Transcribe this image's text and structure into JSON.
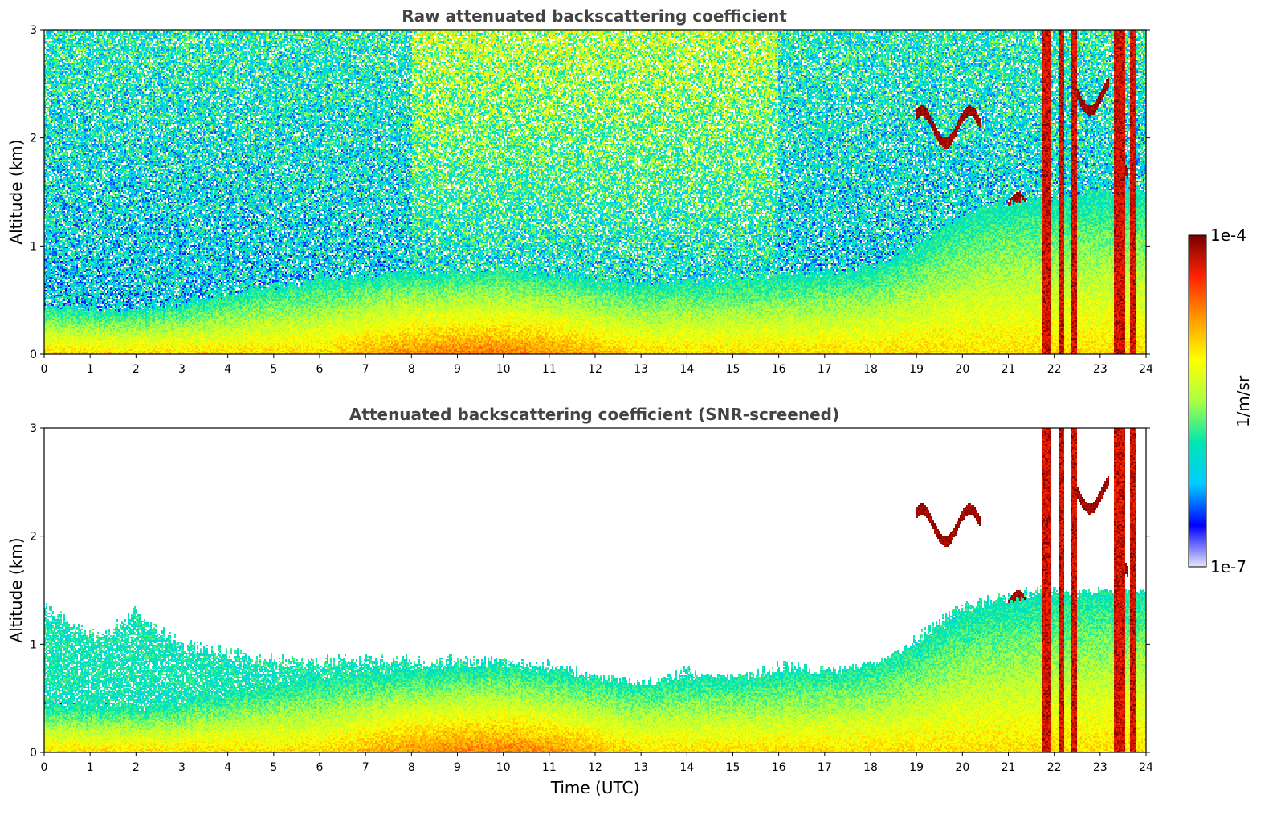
{
  "colors": {
    "jet_stops": [
      "#e6e6fa",
      "#0000ff",
      "#00ccff",
      "#00e6b0",
      "#aaff44",
      "#ffff00",
      "#ff9900",
      "#ff2200",
      "#7a0000"
    ],
    "axis": "#000000",
    "title": "#444444"
  },
  "chart_data": [
    {
      "type": "heatmap",
      "title": "Raw attenuated backscattering coefficient",
      "xlabel": "",
      "ylabel": "Altitude (km)",
      "xlim": [
        0,
        24
      ],
      "ylim": [
        0,
        3
      ],
      "x_ticks": [
        "0",
        "1",
        "2",
        "3",
        "4",
        "5",
        "6",
        "7",
        "8",
        "9",
        "10",
        "11",
        "12",
        "13",
        "14",
        "15",
        "16",
        "17",
        "18",
        "19",
        "20",
        "21",
        "22",
        "23",
        "24"
      ],
      "y_ticks": [
        "0",
        "1",
        "2",
        "3"
      ],
      "screened": false,
      "noise_floor_log10": -6.3,
      "features": {
        "boundary_layer_top_km": [
          [
            0,
            0.45
          ],
          [
            2,
            0.4
          ],
          [
            4,
            0.55
          ],
          [
            6,
            0.7
          ],
          [
            8,
            0.75
          ],
          [
            10,
            0.8
          ],
          [
            12,
            0.7
          ],
          [
            13,
            0.65
          ],
          [
            15,
            0.7
          ],
          [
            17,
            0.75
          ],
          [
            18,
            0.8
          ],
          [
            19,
            1.0
          ],
          [
            20,
            1.3
          ],
          [
            21,
            1.4
          ],
          [
            23,
            1.5
          ],
          [
            24,
            1.5
          ]
        ],
        "rain_columns_utc": [
          [
            21.72,
            21.95
          ],
          [
            22.1,
            22.2
          ],
          [
            22.35,
            22.5
          ],
          [
            23.3,
            23.55
          ],
          [
            23.65,
            23.8
          ]
        ],
        "elevated_cloud_layers": [
          {
            "t0": 19.0,
            "t1": 20.4,
            "alt_km": 2.1
          },
          {
            "t0": 21.0,
            "t1": 21.4,
            "alt_km": 1.3
          },
          {
            "t0": 22.5,
            "t1": 23.2,
            "alt_km": 2.4
          },
          {
            "t0": 23.3,
            "t1": 23.6,
            "alt_km": 1.7
          }
        ]
      }
    },
    {
      "type": "heatmap",
      "title": "Attenuated backscattering coefficient (SNR-screened)",
      "xlabel": "Time (UTC)",
      "ylabel": "Altitude (km)",
      "xlim": [
        0,
        24
      ],
      "ylim": [
        0,
        3
      ],
      "x_ticks": [
        "0",
        "1",
        "2",
        "3",
        "4",
        "5",
        "6",
        "7",
        "8",
        "9",
        "10",
        "11",
        "12",
        "13",
        "14",
        "15",
        "16",
        "17",
        "18",
        "19",
        "20",
        "21",
        "22",
        "23",
        "24"
      ],
      "y_ticks": [
        "0",
        "1",
        "2",
        "3"
      ],
      "screened": true,
      "screen_top_km": [
        [
          0,
          1.35
        ],
        [
          1.2,
          1.05
        ],
        [
          2,
          1.3
        ],
        [
          3,
          1.0
        ],
        [
          5,
          0.85
        ],
        [
          7,
          0.85
        ],
        [
          9,
          0.85
        ],
        [
          11,
          0.8
        ],
        [
          12,
          0.7
        ],
        [
          13,
          0.6
        ],
        [
          14,
          0.75
        ],
        [
          15,
          0.65
        ],
        [
          16,
          0.8
        ],
        [
          17,
          0.75
        ],
        [
          18,
          0.7
        ],
        [
          19,
          1.05
        ],
        [
          20,
          1.35
        ],
        [
          21,
          1.45
        ],
        [
          22,
          1.5
        ],
        [
          23,
          1.45
        ],
        [
          24,
          1.45
        ]
      ]
    }
  ],
  "colorbar": {
    "max_label": "1e-4",
    "min_label": "1e-7",
    "unit_label": "1/m/sr",
    "log_min": -7,
    "log_max": -4
  }
}
